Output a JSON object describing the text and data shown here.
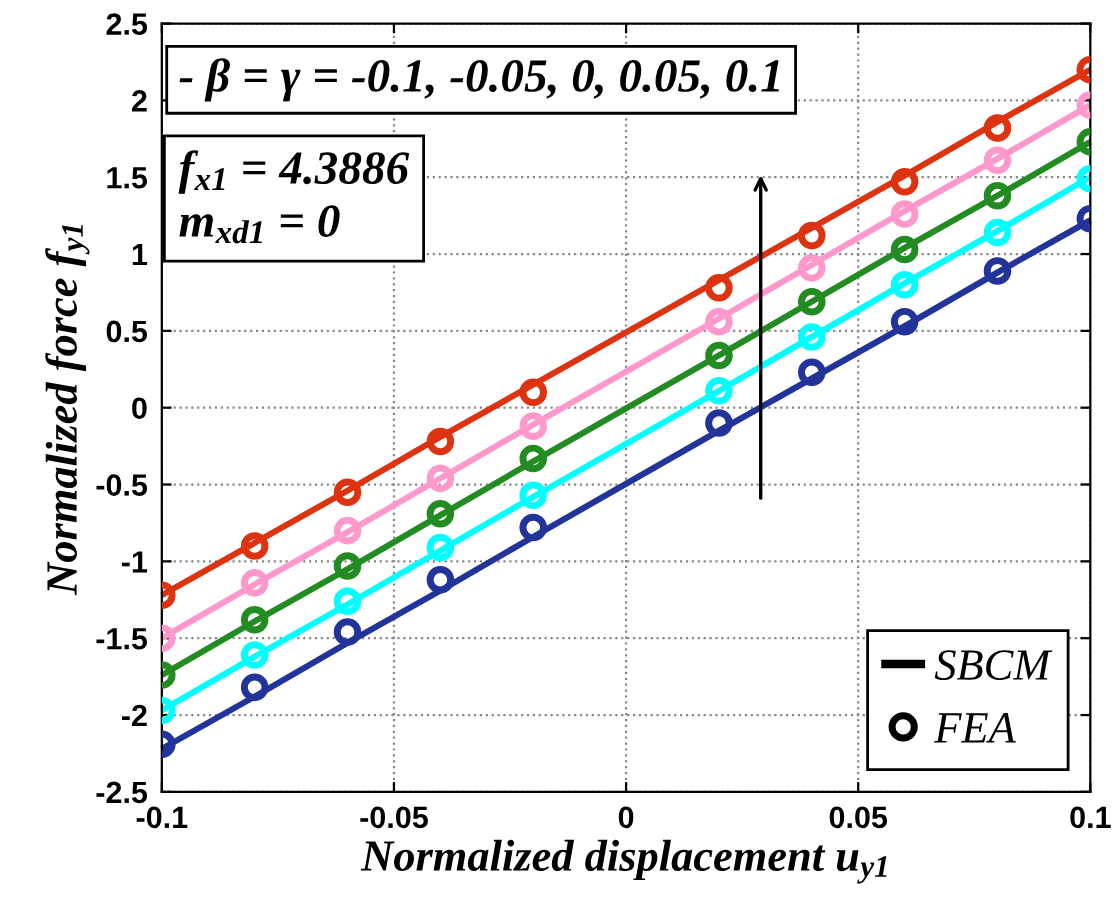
{
  "chart_data": {
    "type": "line",
    "xlabel": "Normalized displacement u$_{y1}$",
    "ylabel": "Normalized force f$_{y1}$",
    "x": [
      -0.1,
      -0.08,
      -0.06,
      -0.04,
      -0.02,
      0.02,
      0.04,
      0.06,
      0.08,
      0.1
    ],
    "series": [
      {
        "color": "#dd3311",
        "values": [
          -1.22,
          -0.88,
          -0.54,
          -0.19,
          0.15,
          0.83,
          1.17,
          1.51,
          1.86,
          2.2
        ]
      },
      {
        "type": "line",
        "color": "#ff99cc",
        "values": [
          -1.5,
          -1.15,
          -0.81,
          -0.46,
          -0.11,
          0.58,
          0.93,
          1.28,
          1.62,
          1.97
        ]
      },
      {
        "type": "line",
        "color": "#228b22",
        "values": [
          -1.74,
          -1.39,
          -1.05,
          -0.7,
          -0.35,
          0.34,
          0.69,
          1.04,
          1.38,
          1.73
        ]
      },
      {
        "type": "line",
        "color": "#00ffff",
        "values": [
          -1.97,
          -1.62,
          -1.28,
          -0.93,
          -0.58,
          0.11,
          0.46,
          0.81,
          1.15,
          1.5
        ]
      },
      {
        "type": "line",
        "color": "#223399",
        "values": [
          -2.22,
          -1.88,
          -1.53,
          -1.19,
          -0.84,
          -0.15,
          0.19,
          0.53,
          0.88,
          1.22
        ]
      },
      {
        "type": "scatter",
        "marker": "circle",
        "color": "#dd3311",
        "values": [
          -1.22,
          -0.9,
          -0.55,
          -0.22,
          0.1,
          0.78,
          1.12,
          1.47,
          1.82,
          2.2
        ]
      },
      {
        "type": "scatter",
        "marker": "circle",
        "color": "#ff99cc",
        "values": [
          -1.5,
          -1.14,
          -0.8,
          -0.46,
          -0.12,
          0.56,
          0.91,
          1.26,
          1.61,
          1.97
        ]
      },
      {
        "type": "scatter",
        "marker": "circle",
        "color": "#228b22",
        "values": [
          -1.74,
          -1.38,
          -1.03,
          -0.69,
          -0.33,
          0.34,
          0.69,
          1.03,
          1.38,
          1.73
        ]
      },
      {
        "type": "scatter",
        "marker": "circle",
        "color": "#00ffff",
        "values": [
          -1.97,
          -1.61,
          -1.26,
          -0.91,
          -0.57,
          0.11,
          0.46,
          0.8,
          1.14,
          1.49
        ]
      },
      {
        "type": "scatter",
        "marker": "circle",
        "color": "#223399",
        "values": [
          -2.19,
          -1.82,
          -1.46,
          -1.12,
          -0.78,
          -0.1,
          0.23,
          0.56,
          0.89,
          1.23
        ]
      }
    ],
    "annotations": [
      "- β = γ = -0.1, -0.05, 0, 0.05, 0.1",
      "f$_{x1}$ = 4.3886\nm$_{xd1}$ = 0",
      "SBCM",
      "FEA"
    ],
    "xlim": [
      -0.1,
      0.1
    ],
    "xticks": [
      -0.1,
      -0.05,
      0,
      0.05,
      0.1
    ],
    "ylim": [
      -2.5,
      2.5
    ],
    "yticks": [
      -2.5,
      -2,
      -1.5,
      -1,
      -0.5,
      0,
      0.5,
      1,
      1.5,
      2,
      2.5
    ],
    "grid": true
  }
}
